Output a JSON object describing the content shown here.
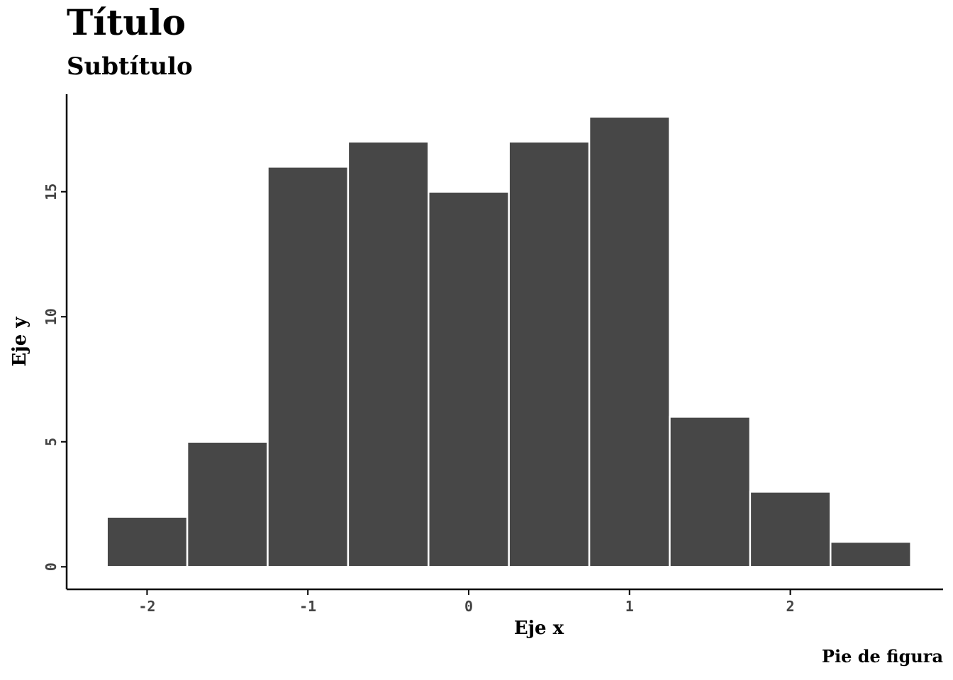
{
  "chart_data": {
    "type": "bar",
    "title": "Título",
    "subtitle": "Subtítulo",
    "caption": "Pie de figura",
    "xlabel": "Eje x",
    "ylabel": "Eje y",
    "bins": [
      {
        "x0": -2.25,
        "x1": -1.75,
        "count": 2
      },
      {
        "x0": -1.75,
        "x1": -1.25,
        "count": 5
      },
      {
        "x0": -1.25,
        "x1": -0.75,
        "count": 16
      },
      {
        "x0": -0.75,
        "x1": -0.25,
        "count": 17
      },
      {
        "x0": -0.25,
        "x1": 0.25,
        "count": 15
      },
      {
        "x0": 0.25,
        "x1": 0.75,
        "count": 17
      },
      {
        "x0": 0.75,
        "x1": 1.25,
        "count": 18
      },
      {
        "x0": 1.25,
        "x1": 1.75,
        "count": 6
      },
      {
        "x0": 1.75,
        "x1": 2.25,
        "count": 3
      },
      {
        "x0": 2.25,
        "x1": 2.75,
        "count": 1
      }
    ],
    "xlim": [
      -2.5,
      2.95
    ],
    "ylim": [
      -0.9,
      18.9
    ],
    "xticks": [
      -2,
      -1,
      0,
      1,
      2
    ],
    "xtick_labels": [
      "-2",
      "-1",
      "0",
      "1",
      "2"
    ],
    "yticks": [
      0,
      5,
      10,
      15
    ],
    "ytick_labels": [
      "0",
      "5",
      "10",
      "15"
    ],
    "bar_color": "#474747",
    "bar_edge_color": "#ffffff",
    "grid": false,
    "legend": "none"
  }
}
